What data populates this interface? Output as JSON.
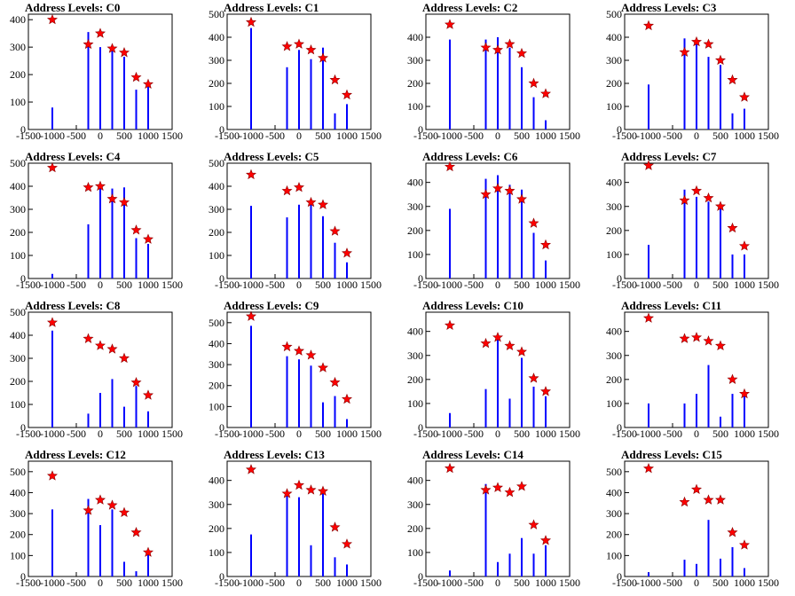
{
  "figure": {
    "colors": {
      "bars": "#0000ff",
      "markers": "#ff0000",
      "axes": "#000000",
      "background": "#ffffff"
    },
    "marker_icon": "star-marker-icon"
  },
  "chart_data": [
    {
      "type": "bar",
      "title": "Address Levels: C0",
      "xlim": [
        -1500,
        1500
      ],
      "ylim": [
        0,
        420
      ],
      "yticks": [
        0,
        100,
        200,
        300,
        400
      ],
      "xticks": [
        -1500,
        -1000,
        -500,
        0,
        500,
        1000,
        1500
      ],
      "peaks": [
        {
          "x": -1000,
          "bar": 80,
          "marker": 400
        },
        {
          "x": -250,
          "bar": 355,
          "marker": 310
        },
        {
          "x": 0,
          "bar": 300,
          "marker": 350
        },
        {
          "x": 250,
          "bar": 305,
          "marker": 295
        },
        {
          "x": 500,
          "bar": 265,
          "marker": 280
        },
        {
          "x": 750,
          "bar": 145,
          "marker": 190
        },
        {
          "x": 1000,
          "bar": 155,
          "marker": 165
        }
      ]
    },
    {
      "type": "bar",
      "title": "Address Levels: C1",
      "xlim": [
        -1500,
        1500
      ],
      "ylim": [
        0,
        500
      ],
      "yticks": [
        0,
        100,
        200,
        300,
        400,
        500
      ],
      "xticks": [
        -1500,
        -1000,
        -500,
        0,
        500,
        1000,
        1500
      ],
      "peaks": [
        {
          "x": -1000,
          "bar": 440,
          "marker": 465
        },
        {
          "x": -250,
          "bar": 270,
          "marker": 360
        },
        {
          "x": 0,
          "bar": 345,
          "marker": 370
        },
        {
          "x": 250,
          "bar": 305,
          "marker": 345
        },
        {
          "x": 500,
          "bar": 355,
          "marker": 310
        },
        {
          "x": 750,
          "bar": 70,
          "marker": 215
        },
        {
          "x": 1000,
          "bar": 110,
          "marker": 150
        }
      ]
    },
    {
      "type": "bar",
      "title": "Address Levels: C2",
      "xlim": [
        -1500,
        1500
      ],
      "ylim": [
        0,
        500
      ],
      "yticks": [
        0,
        100,
        200,
        300,
        400
      ],
      "xticks": [
        -1500,
        -1000,
        -500,
        0,
        500,
        1000,
        1500
      ],
      "peaks": [
        {
          "x": -1000,
          "bar": 390,
          "marker": 455
        },
        {
          "x": -250,
          "bar": 390,
          "marker": 355
        },
        {
          "x": 0,
          "bar": 400,
          "marker": 345
        },
        {
          "x": 250,
          "bar": 355,
          "marker": 370
        },
        {
          "x": 500,
          "bar": 270,
          "marker": 330
        },
        {
          "x": 750,
          "bar": 140,
          "marker": 200
        },
        {
          "x": 1000,
          "bar": 40,
          "marker": 155
        }
      ]
    },
    {
      "type": "bar",
      "title": "Address Levels: C3",
      "xlim": [
        -1500,
        1500
      ],
      "ylim": [
        0,
        500
      ],
      "yticks": [
        0,
        100,
        200,
        300,
        400,
        500
      ],
      "xticks": [
        -1500,
        -1000,
        -500,
        0,
        500,
        1000,
        1500
      ],
      "peaks": [
        {
          "x": -1000,
          "bar": 195,
          "marker": 450
        },
        {
          "x": -250,
          "bar": 395,
          "marker": 335
        },
        {
          "x": 0,
          "bar": 385,
          "marker": 380
        },
        {
          "x": 250,
          "bar": 315,
          "marker": 370
        },
        {
          "x": 500,
          "bar": 280,
          "marker": 300
        },
        {
          "x": 750,
          "bar": 70,
          "marker": 215
        },
        {
          "x": 1000,
          "bar": 90,
          "marker": 140
        }
      ]
    },
    {
      "type": "bar",
      "title": "Address Levels: C4",
      "xlim": [
        -1500,
        1500
      ],
      "ylim": [
        0,
        500
      ],
      "yticks": [
        0,
        100,
        200,
        300,
        400,
        500
      ],
      "xticks": [
        -1500,
        -1000,
        -500,
        0,
        500,
        1000,
        1500
      ],
      "peaks": [
        {
          "x": -1000,
          "bar": 20,
          "marker": 480
        },
        {
          "x": -250,
          "bar": 235,
          "marker": 395
        },
        {
          "x": 0,
          "bar": 395,
          "marker": 400
        },
        {
          "x": 250,
          "bar": 390,
          "marker": 345
        },
        {
          "x": 500,
          "bar": 395,
          "marker": 330
        },
        {
          "x": 750,
          "bar": 175,
          "marker": 210
        },
        {
          "x": 1000,
          "bar": 150,
          "marker": 170
        }
      ]
    },
    {
      "type": "bar",
      "title": "Address Levels: C5",
      "xlim": [
        -1500,
        1500
      ],
      "ylim": [
        0,
        500
      ],
      "yticks": [
        0,
        100,
        200,
        300,
        400,
        500
      ],
      "xticks": [
        -1500,
        -1000,
        -500,
        0,
        500,
        1000,
        1500
      ],
      "peaks": [
        {
          "x": -1000,
          "bar": 315,
          "marker": 450
        },
        {
          "x": -250,
          "bar": 265,
          "marker": 380
        },
        {
          "x": 0,
          "bar": 320,
          "marker": 395
        },
        {
          "x": 250,
          "bar": 320,
          "marker": 330
        },
        {
          "x": 500,
          "bar": 270,
          "marker": 320
        },
        {
          "x": 750,
          "bar": 155,
          "marker": 205
        },
        {
          "x": 1000,
          "bar": 70,
          "marker": 110
        }
      ]
    },
    {
      "type": "bar",
      "title": "Address Levels: C6",
      "xlim": [
        -1500,
        1500
      ],
      "ylim": [
        0,
        480
      ],
      "yticks": [
        0,
        100,
        200,
        300,
        400
      ],
      "xticks": [
        -1500,
        -1000,
        -500,
        0,
        500,
        1000,
        1500
      ],
      "peaks": [
        {
          "x": -1000,
          "bar": 290,
          "marker": 465
        },
        {
          "x": -250,
          "bar": 415,
          "marker": 350
        },
        {
          "x": 0,
          "bar": 430,
          "marker": 375
        },
        {
          "x": 250,
          "bar": 390,
          "marker": 365
        },
        {
          "x": 500,
          "bar": 370,
          "marker": 330
        },
        {
          "x": 750,
          "bar": 190,
          "marker": 230
        },
        {
          "x": 1000,
          "bar": 75,
          "marker": 140
        }
      ]
    },
    {
      "type": "bar",
      "title": "Address Levels: C7",
      "xlim": [
        -1500,
        1500
      ],
      "ylim": [
        0,
        480
      ],
      "yticks": [
        0,
        100,
        200,
        300,
        400
      ],
      "xticks": [
        -1500,
        -1000,
        -500,
        0,
        500,
        1000,
        1500
      ],
      "peaks": [
        {
          "x": -1000,
          "bar": 140,
          "marker": 470
        },
        {
          "x": -250,
          "bar": 370,
          "marker": 325
        },
        {
          "x": 0,
          "bar": 340,
          "marker": 365
        },
        {
          "x": 250,
          "bar": 320,
          "marker": 335
        },
        {
          "x": 500,
          "bar": 310,
          "marker": 300
        },
        {
          "x": 750,
          "bar": 100,
          "marker": 210
        },
        {
          "x": 1000,
          "bar": 100,
          "marker": 135
        }
      ]
    },
    {
      "type": "bar",
      "title": "Address Levels: C8",
      "xlim": [
        -1500,
        1500
      ],
      "ylim": [
        0,
        500
      ],
      "yticks": [
        0,
        100,
        200,
        300,
        400,
        500
      ],
      "xticks": [
        -1500,
        -1000,
        -500,
        0,
        500,
        1000,
        1500
      ],
      "peaks": [
        {
          "x": -1000,
          "bar": 420,
          "marker": 455
        },
        {
          "x": -250,
          "bar": 60,
          "marker": 385
        },
        {
          "x": 0,
          "bar": 150,
          "marker": 355
        },
        {
          "x": 250,
          "bar": 210,
          "marker": 340
        },
        {
          "x": 500,
          "bar": 90,
          "marker": 300
        },
        {
          "x": 750,
          "bar": 180,
          "marker": 195
        },
        {
          "x": 1000,
          "bar": 70,
          "marker": 140
        }
      ]
    },
    {
      "type": "bar",
      "title": "Address Levels: C9",
      "xlim": [
        -1500,
        1500
      ],
      "ylim": [
        0,
        550
      ],
      "yticks": [
        0,
        100,
        200,
        300,
        400,
        500
      ],
      "xticks": [
        -1500,
        -1000,
        -500,
        0,
        500,
        1000,
        1500
      ],
      "peaks": [
        {
          "x": -1000,
          "bar": 485,
          "marker": 530
        },
        {
          "x": -250,
          "bar": 340,
          "marker": 385
        },
        {
          "x": 0,
          "bar": 325,
          "marker": 365
        },
        {
          "x": 250,
          "bar": 295,
          "marker": 345
        },
        {
          "x": 500,
          "bar": 120,
          "marker": 285
        },
        {
          "x": 750,
          "bar": 150,
          "marker": 215
        },
        {
          "x": 1000,
          "bar": 40,
          "marker": 135
        }
      ]
    },
    {
      "type": "bar",
      "title": "Address Levels: C10",
      "xlim": [
        -1500,
        1500
      ],
      "ylim": [
        0,
        480
      ],
      "yticks": [
        0,
        100,
        200,
        300,
        400
      ],
      "xticks": [
        -1500,
        -1000,
        -500,
        0,
        500,
        1000,
        1500
      ],
      "peaks": [
        {
          "x": -1000,
          "bar": 60,
          "marker": 425
        },
        {
          "x": -250,
          "bar": 160,
          "marker": 350
        },
        {
          "x": 0,
          "bar": 370,
          "marker": 375
        },
        {
          "x": 250,
          "bar": 120,
          "marker": 340
        },
        {
          "x": 500,
          "bar": 290,
          "marker": 315
        },
        {
          "x": 750,
          "bar": 170,
          "marker": 205
        },
        {
          "x": 1000,
          "bar": 130,
          "marker": 150
        }
      ]
    },
    {
      "type": "bar",
      "title": "Address Levels: C11",
      "xlim": [
        -1500,
        1500
      ],
      "ylim": [
        0,
        480
      ],
      "yticks": [
        0,
        100,
        200,
        300,
        400
      ],
      "xticks": [
        -1500,
        -1000,
        -500,
        0,
        500,
        1000,
        1500
      ],
      "peaks": [
        {
          "x": -1000,
          "bar": 100,
          "marker": 455
        },
        {
          "x": -250,
          "bar": 100,
          "marker": 370
        },
        {
          "x": 0,
          "bar": 140,
          "marker": 375
        },
        {
          "x": 250,
          "bar": 260,
          "marker": 360
        },
        {
          "x": 500,
          "bar": 45,
          "marker": 340
        },
        {
          "x": 750,
          "bar": 140,
          "marker": 200
        },
        {
          "x": 1000,
          "bar": 130,
          "marker": 140
        }
      ]
    },
    {
      "type": "bar",
      "title": "Address Levels: C12",
      "xlim": [
        -1500,
        1500
      ],
      "ylim": [
        0,
        550
      ],
      "yticks": [
        0,
        100,
        200,
        300,
        400,
        500
      ],
      "xticks": [
        -1500,
        -1000,
        -500,
        0,
        500,
        1000,
        1500
      ],
      "peaks": [
        {
          "x": -1000,
          "bar": 320,
          "marker": 480
        },
        {
          "x": -250,
          "bar": 370,
          "marker": 315
        },
        {
          "x": 0,
          "bar": 245,
          "marker": 365
        },
        {
          "x": 250,
          "bar": 320,
          "marker": 340
        },
        {
          "x": 500,
          "bar": 70,
          "marker": 305
        },
        {
          "x": 750,
          "bar": 25,
          "marker": 210
        },
        {
          "x": 1000,
          "bar": 120,
          "marker": 115
        }
      ]
    },
    {
      "type": "bar",
      "title": "Address Levels: C13",
      "xlim": [
        -1500,
        1500
      ],
      "ylim": [
        0,
        480
      ],
      "yticks": [
        0,
        100,
        200,
        300,
        400
      ],
      "xticks": [
        -1500,
        -1000,
        -500,
        0,
        500,
        1000,
        1500
      ],
      "peaks": [
        {
          "x": -1000,
          "bar": 175,
          "marker": 445
        },
        {
          "x": -250,
          "bar": 340,
          "marker": 345
        },
        {
          "x": 0,
          "bar": 330,
          "marker": 380
        },
        {
          "x": 250,
          "bar": 130,
          "marker": 360
        },
        {
          "x": 500,
          "bar": 345,
          "marker": 355
        },
        {
          "x": 750,
          "bar": 80,
          "marker": 205
        },
        {
          "x": 1000,
          "bar": 50,
          "marker": 135
        }
      ]
    },
    {
      "type": "bar",
      "title": "Address Levels: C14",
      "xlim": [
        -1500,
        1500
      ],
      "ylim": [
        0,
        480
      ],
      "yticks": [
        0,
        100,
        200,
        300,
        400
      ],
      "xticks": [
        -1500,
        -1000,
        -500,
        0,
        500,
        1000,
        1500
      ],
      "peaks": [
        {
          "x": -1000,
          "bar": 25,
          "marker": 450
        },
        {
          "x": -250,
          "bar": 385,
          "marker": 360
        },
        {
          "x": 0,
          "bar": 60,
          "marker": 370
        },
        {
          "x": 250,
          "bar": 95,
          "marker": 350
        },
        {
          "x": 500,
          "bar": 160,
          "marker": 375
        },
        {
          "x": 750,
          "bar": 95,
          "marker": 215
        },
        {
          "x": 1000,
          "bar": 130,
          "marker": 150
        }
      ]
    },
    {
      "type": "bar",
      "title": "Address Levels: C15",
      "xlim": [
        -1500,
        1500
      ],
      "ylim": [
        0,
        550
      ],
      "yticks": [
        0,
        100,
        200,
        300,
        400,
        500
      ],
      "xticks": [
        -1500,
        -1000,
        -500,
        0,
        500,
        1000,
        1500
      ],
      "peaks": [
        {
          "x": -1000,
          "bar": 20,
          "marker": 515
        },
        {
          "x": -250,
          "bar": 80,
          "marker": 355
        },
        {
          "x": 0,
          "bar": 60,
          "marker": 415
        },
        {
          "x": 250,
          "bar": 270,
          "marker": 365
        },
        {
          "x": 500,
          "bar": 85,
          "marker": 365
        },
        {
          "x": 750,
          "bar": 140,
          "marker": 210
        },
        {
          "x": 1000,
          "bar": 40,
          "marker": 150
        }
      ]
    }
  ]
}
